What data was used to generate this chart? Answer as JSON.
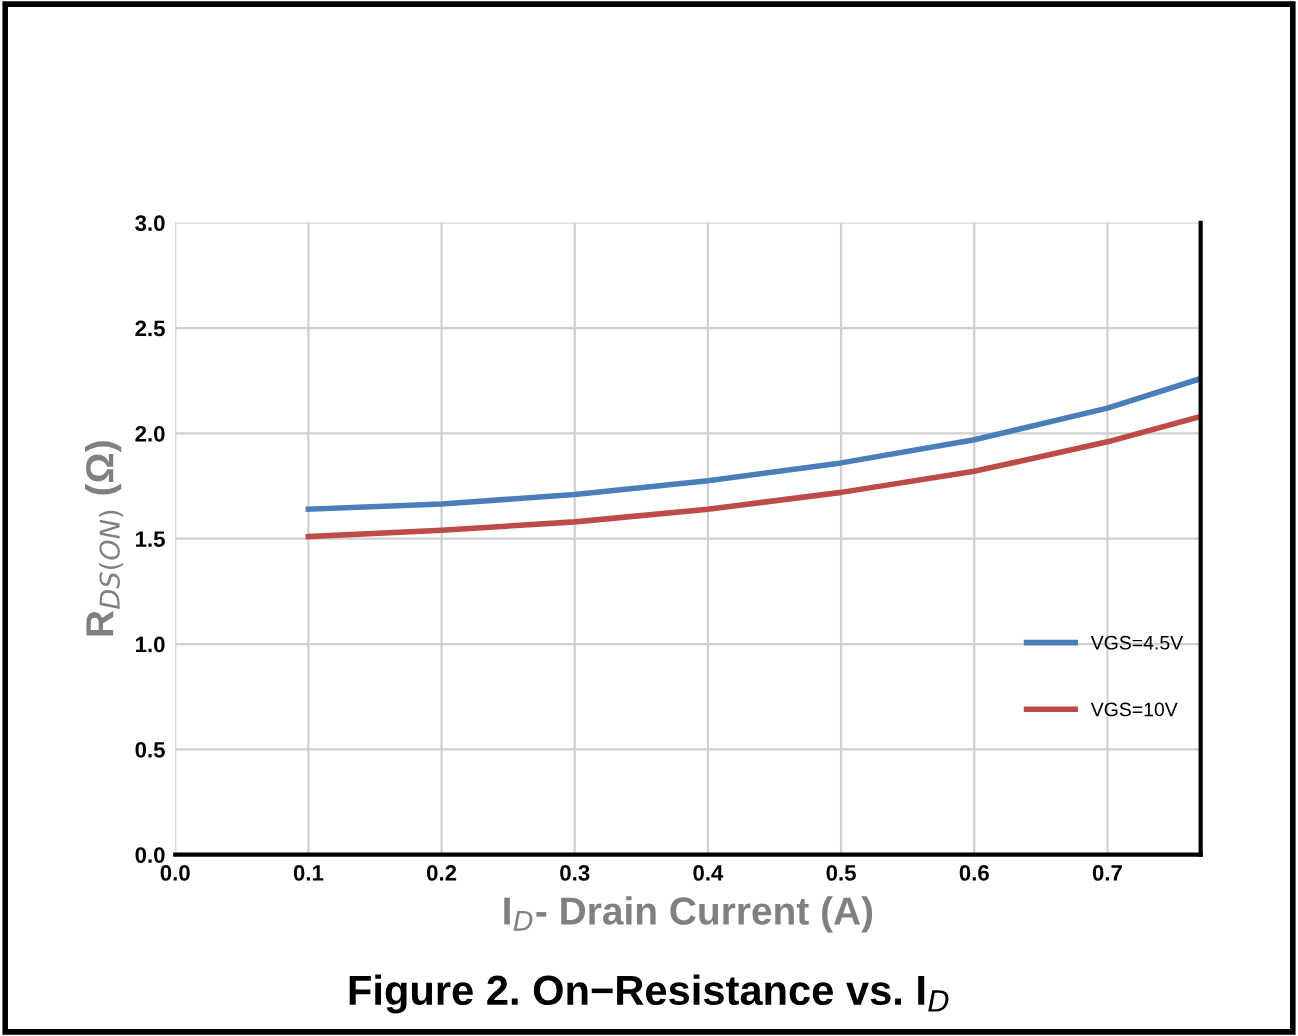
{
  "chart_data": {
    "type": "line",
    "title": "Figure 2. On−Resistance vs. I$_{D}$",
    "xlabel": "I$_{D}$- Drain Current (A)",
    "ylabel": "R$_{DS(ON)}$ (Ω)",
    "x": [
      0.1,
      0.2,
      0.3,
      0.4,
      0.5,
      0.6,
      0.7,
      0.77
    ],
    "series": [
      {
        "name": "VGS=4.5V",
        "color": "#4a7ebb",
        "values": [
          1.64,
          1.665,
          1.71,
          1.775,
          1.86,
          1.97,
          2.12,
          2.26
        ]
      },
      {
        "name": "VGS=10V",
        "color": "#be4b48",
        "values": [
          1.51,
          1.54,
          1.58,
          1.64,
          1.72,
          1.82,
          1.96,
          2.08
        ]
      }
    ],
    "xlim": [
      0,
      0.77
    ],
    "xticks": [
      {
        "value": 0,
        "label": "0.0"
      },
      0.1,
      0.2,
      0.3,
      0.4,
      0.5,
      0.6,
      0.7
    ],
    "ylim": [
      0,
      3
    ],
    "yticks": [
      {
        "value": 0,
        "label": "0.0"
      },
      0.5,
      {
        "value": 1,
        "label": "1.0"
      },
      1.5,
      {
        "value": 2,
        "label": "2.0"
      },
      2.5,
      {
        "value": 3,
        "label": "3.0"
      }
    ],
    "grid": true,
    "legend": "right",
    "marker": "none",
    "line_style": "solid"
  }
}
